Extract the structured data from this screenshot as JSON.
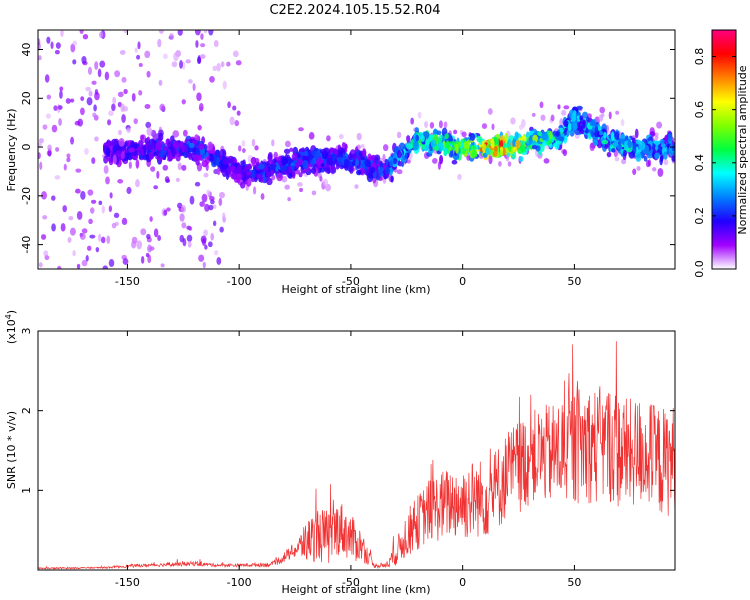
{
  "figure": {
    "title": "C2E2.2024.105.15.52.R04"
  },
  "chart_data": [
    {
      "type": "heatmap",
      "xlabel": "Height of straight line (km)",
      "ylabel": "Frequency (Hz)",
      "xlim": [
        -190,
        95
      ],
      "ylim": [
        -50,
        48
      ],
      "x_ticks": [
        -150,
        -100,
        -50,
        0,
        50
      ],
      "x_tick_labels": [
        "-150",
        "-100",
        "-50",
        "0",
        "50"
      ],
      "y_ticks": [
        -40,
        -20,
        0,
        20,
        40
      ],
      "y_tick_labels": [
        "-40",
        "-20",
        "0",
        "20",
        "40"
      ],
      "colorbar": {
        "label": "Normalized spectral amplitude",
        "range": [
          0,
          0.9
        ],
        "ticks": [
          0.0,
          0.2,
          0.4,
          0.6,
          0.8
        ],
        "tick_labels": [
          "0.0",
          "0.2",
          "0.4",
          "0.6",
          "0.8"
        ],
        "colormap": [
          "#ffffff",
          "#a000ff",
          "#2000ff",
          "#0080ff",
          "#00ffff",
          "#00ff40",
          "#80ff00",
          "#ffff00",
          "#ff8000",
          "#ff0000",
          "#ff0080"
        ]
      },
      "ridge": {
        "x": [
          -190,
          -150,
          -120,
          -100,
          -90,
          -70,
          -50,
          -35,
          -20,
          0,
          15,
          30,
          45,
          50,
          60,
          75,
          95
        ],
        "frequency": [
          0,
          -2,
          0,
          -10,
          -10,
          -5,
          -5,
          -10,
          3,
          0,
          0,
          2,
          5,
          12,
          5,
          0,
          0
        ],
        "peak_amplitude": [
          0.05,
          0.2,
          0.25,
          0.2,
          0.25,
          0.25,
          0.25,
          0.25,
          0.45,
          0.55,
          0.85,
          0.55,
          0.45,
          0.35,
          0.4,
          0.4,
          0.3
        ]
      },
      "grid": false
    },
    {
      "type": "line",
      "xlabel": "Height of straight line (km)",
      "ylabel": "SNR (10 * v/v)",
      "y_scale_label": "(x10",
      "y_scale_exponent": "4",
      "xlim": [
        -190,
        95
      ],
      "ylim": [
        0,
        3
      ],
      "x_ticks": [
        -150,
        -100,
        -50,
        0,
        50
      ],
      "x_tick_labels": [
        "-150",
        "-100",
        "-50",
        "0",
        "50"
      ],
      "y_ticks": [
        1,
        2,
        3
      ],
      "y_tick_labels": [
        "1",
        "2",
        "3"
      ],
      "line_color": "#f03232",
      "series": [
        {
          "x": [
            -190,
            -160,
            -150,
            -140,
            -120,
            -110,
            -100,
            -85,
            -75,
            -70,
            -65,
            -60,
            -55,
            -50,
            -45,
            -40,
            -35,
            -30,
            -25,
            -20,
            -15,
            -10,
            -5,
            0,
            5,
            10,
            15,
            20,
            25,
            30,
            35,
            40,
            45,
            50,
            55,
            60,
            65,
            70,
            75,
            80,
            85,
            90,
            95
          ],
          "y": [
            0.02,
            0.03,
            0.05,
            0.06,
            0.08,
            0.06,
            0.06,
            0.07,
            0.25,
            0.35,
            0.45,
            0.4,
            0.55,
            0.4,
            0.3,
            0.06,
            0.05,
            0.2,
            0.45,
            0.6,
            0.75,
            0.8,
            0.85,
            0.85,
            0.9,
            0.9,
            1.0,
            1.2,
            1.3,
            1.4,
            1.45,
            1.45,
            1.5,
            1.55,
            1.6,
            1.55,
            1.6,
            1.5,
            1.45,
            1.5,
            1.4,
            1.35,
            1.4
          ],
          "spread": [
            0.01,
            0.01,
            0.02,
            0.02,
            0.03,
            0.02,
            0.02,
            0.03,
            0.1,
            0.25,
            0.35,
            0.35,
            0.35,
            0.3,
            0.2,
            0.03,
            0.03,
            0.15,
            0.3,
            0.35,
            0.4,
            0.45,
            0.45,
            0.5,
            0.5,
            0.5,
            0.55,
            0.55,
            0.6,
            0.6,
            0.6,
            0.65,
            0.7,
            0.75,
            0.75,
            0.75,
            0.75,
            0.75,
            0.7,
            0.7,
            0.7,
            0.7,
            0.7
          ]
        }
      ],
      "grid": false
    }
  ]
}
